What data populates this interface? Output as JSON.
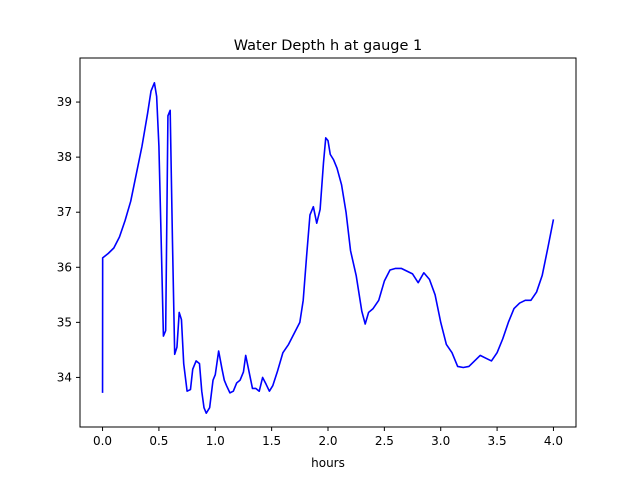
{
  "chart_data": {
    "type": "line",
    "title": "Water Depth h at gauge 1",
    "xlabel": "hours",
    "ylabel": "",
    "xlim": [
      -0.2,
      4.2
    ],
    "ylim": [
      33.1,
      39.8
    ],
    "xticks": [
      0.0,
      0.5,
      1.0,
      1.5,
      2.0,
      2.5,
      3.0,
      3.5,
      4.0
    ],
    "xtick_labels": [
      "0.0",
      "0.5",
      "1.0",
      "1.5",
      "2.0",
      "2.5",
      "3.0",
      "3.5",
      "4.0"
    ],
    "yticks": [
      34,
      35,
      36,
      37,
      38,
      39
    ],
    "ytick_labels": [
      "34",
      "35",
      "36",
      "37",
      "38",
      "39"
    ],
    "grid": false,
    "series": [
      {
        "color": "#0000ff",
        "x": [
          0.0,
          0.001,
          0.05,
          0.1,
          0.15,
          0.2,
          0.25,
          0.3,
          0.35,
          0.4,
          0.43,
          0.46,
          0.48,
          0.5,
          0.52,
          0.54,
          0.56,
          0.58,
          0.6,
          0.62,
          0.64,
          0.66,
          0.68,
          0.7,
          0.72,
          0.75,
          0.78,
          0.8,
          0.83,
          0.86,
          0.88,
          0.9,
          0.92,
          0.95,
          0.98,
          1.0,
          1.03,
          1.06,
          1.08,
          1.1,
          1.13,
          1.16,
          1.19,
          1.22,
          1.25,
          1.27,
          1.3,
          1.33,
          1.36,
          1.39,
          1.42,
          1.45,
          1.48,
          1.51,
          1.55,
          1.6,
          1.65,
          1.7,
          1.75,
          1.78,
          1.81,
          1.84,
          1.87,
          1.9,
          1.93,
          1.96,
          1.98,
          2.0,
          2.02,
          2.05,
          2.08,
          2.12,
          2.16,
          2.2,
          2.25,
          2.3,
          2.33,
          2.36,
          2.4,
          2.45,
          2.5,
          2.55,
          2.6,
          2.65,
          2.7,
          2.75,
          2.8,
          2.85,
          2.9,
          2.95,
          3.0,
          3.05,
          3.1,
          3.15,
          3.2,
          3.25,
          3.3,
          3.35,
          3.4,
          3.45,
          3.5,
          3.55,
          3.6,
          3.65,
          3.7,
          3.75,
          3.8,
          3.85,
          3.9,
          3.95,
          4.0
        ],
        "y": [
          33.72,
          36.17,
          36.25,
          36.35,
          36.55,
          36.85,
          37.2,
          37.7,
          38.2,
          38.8,
          39.2,
          39.35,
          39.1,
          38.2,
          36.5,
          34.75,
          34.85,
          38.75,
          38.85,
          36.5,
          34.42,
          34.55,
          35.18,
          35.05,
          34.25,
          33.75,
          33.78,
          34.15,
          34.3,
          34.25,
          33.75,
          33.45,
          33.35,
          33.45,
          33.95,
          34.05,
          34.48,
          34.15,
          33.95,
          33.85,
          33.72,
          33.75,
          33.9,
          33.95,
          34.1,
          34.4,
          34.1,
          33.8,
          33.8,
          33.75,
          34.0,
          33.88,
          33.75,
          33.85,
          34.1,
          34.45,
          34.6,
          34.8,
          35.0,
          35.4,
          36.2,
          36.95,
          37.1,
          36.8,
          37.05,
          37.9,
          38.35,
          38.3,
          38.05,
          37.95,
          37.8,
          37.5,
          37.0,
          36.3,
          35.85,
          35.2,
          34.97,
          35.18,
          35.25,
          35.4,
          35.75,
          35.95,
          35.98,
          35.98,
          35.93,
          35.88,
          35.72,
          35.9,
          35.78,
          35.5,
          35.0,
          34.6,
          34.45,
          34.2,
          34.18,
          34.2,
          34.3,
          34.4,
          34.35,
          34.3,
          34.45,
          34.7,
          35.0,
          35.25,
          35.35,
          35.4,
          35.4,
          35.55,
          35.85,
          36.35,
          36.87
        ]
      }
    ]
  }
}
